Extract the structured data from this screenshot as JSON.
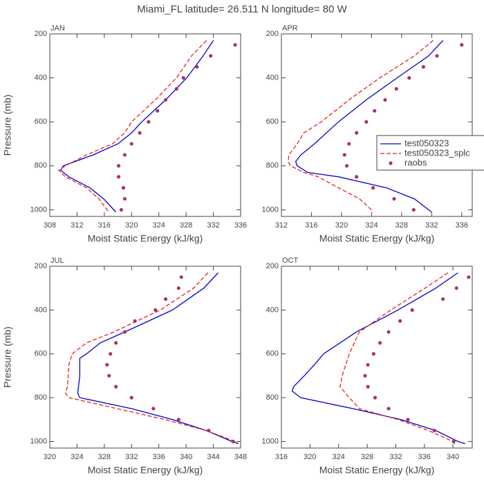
{
  "title": "Miami_FL  latitude= 26.511 N longitude= 80 W",
  "chart_data": [
    {
      "type": "line",
      "label": "JAN",
      "xlabel": "Moist Static Energy (kJ/kg)",
      "ylabel": "Pressure (mb)",
      "xlim": [
        308,
        336
      ],
      "xticks": [
        308,
        312,
        316,
        320,
        324,
        328,
        332,
        336
      ],
      "ylim": [
        1030,
        200
      ],
      "yticks": [
        200,
        400,
        600,
        800,
        1000
      ],
      "legend": false,
      "series": [
        {
          "color": "#0000cc",
          "style": "solid",
          "y": [
            230,
            300,
            400,
            500,
            600,
            650,
            700,
            750,
            800,
            820,
            850,
            900,
            950,
            1000,
            1010
          ],
          "values": [
            332,
            330.5,
            328.1,
            325,
            321.5,
            320,
            318,
            314.4,
            310,
            309.6,
            310.8,
            313.9,
            315.9,
            317.4,
            317.7
          ]
        },
        {
          "color": "#e8211e",
          "style": "dashed",
          "y": [
            230,
            300,
            400,
            500,
            600,
            650,
            700,
            750,
            800,
            820,
            850,
            900,
            950,
            1000,
            1010
          ],
          "values": [
            331,
            328.8,
            326.6,
            323.5,
            320,
            319,
            317.2,
            313.4,
            310.3,
            309.3,
            310.3,
            313.4,
            315.2,
            316.4,
            316.7
          ]
        },
        {
          "color": "#a8336a",
          "style": "markers",
          "y": [
            250,
            300,
            350,
            400,
            450,
            500,
            550,
            600,
            650,
            700,
            750,
            800,
            850,
            900,
            950,
            1000
          ],
          "values": [
            335.2,
            331.6,
            329.6,
            327.6,
            326.6,
            325,
            323.8,
            322.5,
            321.2,
            320,
            319,
            318.1,
            318.1,
            318.8,
            319,
            318.5
          ]
        }
      ]
    },
    {
      "type": "line",
      "label": "APR",
      "xlabel": "Moist Static Energy (kJ/kg)",
      "xlim": [
        312,
        337.4
      ],
      "xticks": [
        312,
        316,
        320,
        324,
        328,
        332,
        336
      ],
      "ylim": [
        1030,
        200
      ],
      "yticks": [
        200,
        400,
        600,
        800,
        1000
      ],
      "legend": "right",
      "series": [
        {
          "name": "test050323",
          "color": "#0000cc",
          "style": "solid",
          "y": [
            230,
            300,
            400,
            500,
            600,
            700,
            750,
            780,
            800,
            830,
            850,
            900,
            950,
            1000,
            1010
          ],
          "values": [
            333.5,
            331.6,
            327.4,
            323.3,
            319.6,
            316.4,
            314.6,
            313.9,
            314.1,
            315.5,
            319.6,
            326,
            329.7,
            331.6,
            332
          ]
        },
        {
          "name": "test050323_splc",
          "color": "#e8211e",
          "style": "dashed",
          "y": [
            230,
            300,
            400,
            500,
            600,
            650,
            700,
            750,
            780,
            800,
            830,
            850,
            900,
            950,
            1000,
            1010
          ],
          "values": [
            332.2,
            329.7,
            325.1,
            321,
            317.3,
            315,
            314.1,
            313,
            312.9,
            313.2,
            315,
            316.9,
            319.6,
            322.4,
            324,
            324.2
          ]
        },
        {
          "name": "raobs",
          "color": "#a8336a",
          "style": "markers",
          "y": [
            250,
            300,
            350,
            400,
            450,
            500,
            550,
            600,
            650,
            700,
            750,
            800,
            850,
            900,
            950,
            1000
          ],
          "values": [
            336,
            332.7,
            330.9,
            329,
            327.3,
            325.8,
            324.4,
            323.3,
            322,
            321,
            320.4,
            320.7,
            322,
            324.2,
            327,
            329.6
          ]
        }
      ]
    },
    {
      "type": "line",
      "label": "JUL",
      "xlabel": "Moist Static Energy (kJ/kg)",
      "ylabel": "Pressure (mb)",
      "xlim": [
        320,
        348
      ],
      "xticks": [
        320,
        324,
        328,
        332,
        336,
        340,
        344,
        348
      ],
      "ylim": [
        1030,
        200
      ],
      "yticks": [
        200,
        400,
        600,
        800,
        1000
      ],
      "legend": false,
      "series": [
        {
          "color": "#0000cc",
          "style": "solid",
          "y": [
            230,
            300,
            400,
            500,
            550,
            600,
            620,
            700,
            780,
            800,
            850,
            900,
            950,
            1000,
            1010
          ],
          "values": [
            344.7,
            342.6,
            338,
            331,
            327.4,
            325.4,
            324.4,
            324.4,
            324.1,
            324.4,
            332,
            338,
            343,
            346.7,
            347.7
          ]
        },
        {
          "color": "#e8211e",
          "style": "dashed",
          "y": [
            230,
            300,
            400,
            500,
            550,
            600,
            650,
            750,
            780,
            800,
            850,
            900,
            950,
            1000,
            1010
          ],
          "values": [
            343.2,
            341.1,
            336.2,
            329.4,
            325.4,
            323.3,
            322.8,
            322.6,
            322.3,
            322.8,
            329.9,
            336.9,
            343,
            347.2,
            347.7
          ]
        },
        {
          "color": "#a8336a",
          "style": "markers",
          "y": [
            250,
            300,
            350,
            400,
            450,
            500,
            550,
            600,
            650,
            700,
            750,
            800,
            850,
            900,
            950,
            1000
          ],
          "values": [
            339.3,
            338.9,
            337,
            335.5,
            332.5,
            331,
            329.7,
            328.9,
            328.4,
            328.7,
            329.7,
            332,
            335.2,
            338.9,
            343.3,
            346.9
          ]
        }
      ]
    },
    {
      "type": "line",
      "label": "OCT",
      "xlabel": "Moist Static Energy (kJ/kg)",
      "xlim": [
        316,
        342.7
      ],
      "xticks": [
        316,
        320,
        324,
        328,
        332,
        336,
        340
      ],
      "ylim": [
        1030,
        200
      ],
      "yticks": [
        200,
        400,
        600,
        800,
        1000
      ],
      "legend": false,
      "series": [
        {
          "color": "#0000cc",
          "style": "solid",
          "y": [
            230,
            300,
            400,
            500,
            600,
            650,
            700,
            750,
            770,
            800,
            850,
            900,
            950,
            1000,
            1010
          ],
          "values": [
            340.7,
            337.6,
            332.3,
            326.5,
            321.9,
            320.6,
            319.2,
            317.7,
            317.5,
            318.7,
            326,
            332.7,
            337.6,
            340.7,
            341.7
          ]
        },
        {
          "color": "#e8211e",
          "style": "dashed",
          "y": [
            230,
            300,
            400,
            500,
            600,
            700,
            750,
            800,
            850,
            900,
            950,
            1000,
            1010
          ],
          "values": [
            339.3,
            336.1,
            331.3,
            326.9,
            325.5,
            324.5,
            324.2,
            325.5,
            326.9,
            332.3,
            336.6,
            340,
            340.3
          ]
        },
        {
          "color": "#a8336a",
          "style": "markers",
          "y": [
            250,
            300,
            350,
            400,
            450,
            500,
            550,
            600,
            650,
            700,
            750,
            800,
            850,
            900,
            950,
            1000
          ],
          "values": [
            342.2,
            340.5,
            338.6,
            334.3,
            332.6,
            331,
            329.8,
            328.9,
            328.1,
            327.7,
            328.1,
            329.1,
            331,
            333.7,
            337.4,
            340.1
          ]
        }
      ]
    }
  ]
}
